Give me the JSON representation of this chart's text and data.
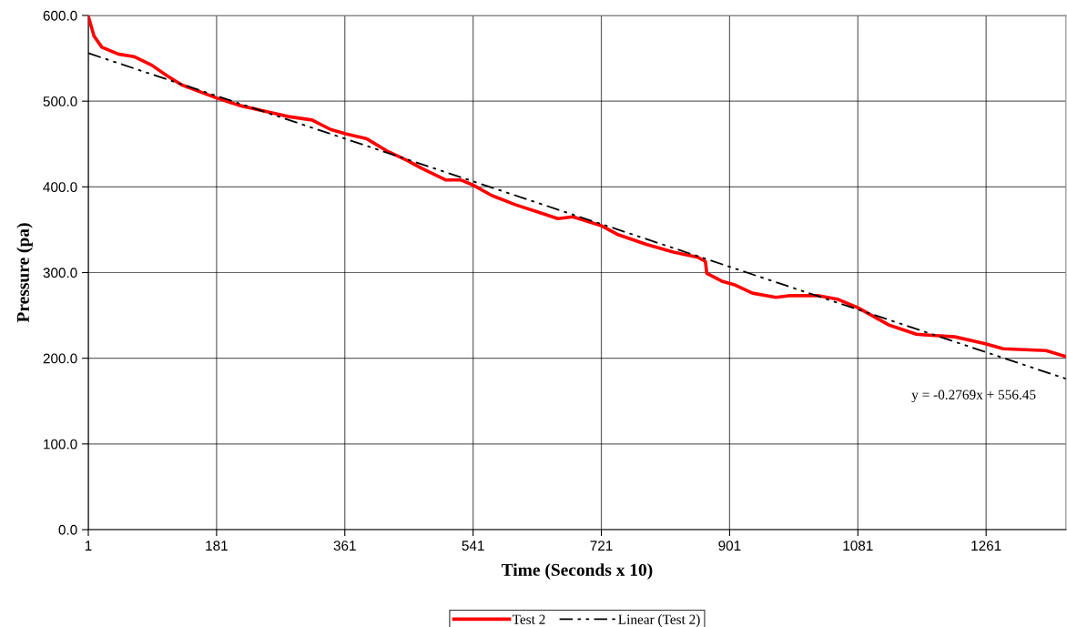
{
  "chart_data": {
    "type": "line",
    "xlabel": "Time (Seconds x 10)",
    "ylabel": "Pressure (pa)",
    "xlim": [
      1,
      1373
    ],
    "xticks": [
      1,
      181,
      361,
      541,
      721,
      901,
      1081,
      1261
    ],
    "ylim": [
      0,
      600
    ],
    "yticks": [
      {
        "value": 0,
        "label": "0.0"
      },
      {
        "value": 100,
        "label": "100.0"
      },
      {
        "value": 200,
        "label": "200.0"
      },
      {
        "value": 300,
        "label": "300.0"
      },
      {
        "value": 400,
        "label": "400.0"
      },
      {
        "value": 500,
        "label": "500.0"
      },
      {
        "value": 600,
        "label": "600.0"
      }
    ],
    "grid": true,
    "legend": "bottom",
    "series": [
      {
        "name": "Test 2",
        "color": "#ff0000",
        "line_style": "solid",
        "x": [
          1,
          9,
          20,
          43,
          65,
          90,
          111,
          132,
          180,
          213,
          256,
          282,
          315,
          341,
          362,
          392,
          422,
          448,
          468,
          503,
          524,
          541,
          567,
          601,
          634,
          660,
          681,
          720,
          745,
          784,
          822,
          856,
          867,
          869,
          890,
          907,
          933,
          966,
          984,
          1026,
          1052,
          1081,
          1124,
          1163,
          1217,
          1260,
          1285,
          1345,
          1373
        ],
        "values": [
          599,
          576,
          563,
          555,
          552,
          542,
          530,
          519,
          504,
          495,
          487,
          482,
          478,
          467,
          462,
          456,
          441,
          431,
          422,
          408,
          408,
          402,
          390,
          379,
          370,
          363,
          365,
          355,
          344,
          333,
          324,
          318,
          313,
          299,
          290,
          286,
          276,
          271,
          273,
          273,
          269,
          259,
          239,
          228,
          225,
          217,
          211,
          209,
          202
        ]
      },
      {
        "name": "Linear (Test 2)",
        "color": "#000000",
        "line_style": "dashdotdot",
        "x": [
          1,
          1373
        ],
        "values": [
          556,
          176
        ]
      }
    ],
    "annotations": [
      "y = -0.2769x + 556.45"
    ]
  }
}
